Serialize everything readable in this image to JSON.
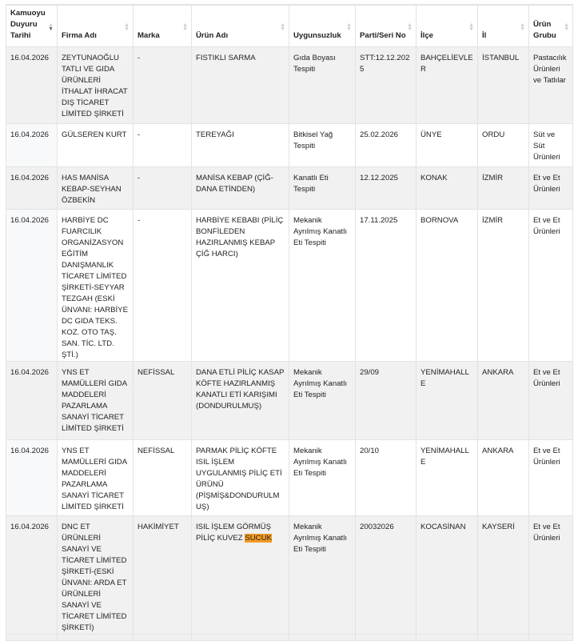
{
  "columns": [
    "Kamuoyu Duyuru Tarihi",
    "Firma Adı",
    "Marka",
    "Ürün Adı",
    "Uygunsuzluk",
    "Parti/Seri No",
    "İlçe",
    "İl",
    "Ürün Grubu"
  ],
  "sorted_column": 0,
  "highlight_term": "SUCUK",
  "rows": [
    [
      "16.04.2026",
      "ZEYTUNAOĞLU TATLI VE GIDA ÜRÜNLERİ İTHALAT İHRACAT DIŞ TİCARET LİMİTED ŞİRKETİ",
      "-",
      "FISTIKLI SARMA",
      "Gıda Boyası Tespiti",
      "STT:12.12.2025",
      "BAHÇELİEVLER",
      "İSTANBUL",
      "Pastacılık Ürünleri ve Tatlılar"
    ],
    [
      "16.04.2026",
      "GÜLSEREN KURT",
      "-",
      "TEREYAĞI",
      "Bitkisel Yağ Tespiti",
      "25.02.2026",
      "ÜNYE",
      "ORDU",
      "Süt ve Süt Ürünleri"
    ],
    [
      "16.04.2026",
      "HAS MANİSA KEBAP-SEYHAN ÖZBEKİN",
      "-",
      "MANİSA KEBAP (ÇİĞ-DANA ETİNDEN)",
      "Kanatlı Eti Tespiti",
      "12.12.2025",
      "KONAK",
      "İZMİR",
      "Et ve Et Ürünleri"
    ],
    [
      "16.04.2026",
      "HARBİYE DC FUARCILIK ORGANİZASYON EĞİTİM DANIŞMANLIK TİCARET LİMİTED ŞİRKETİ-SEYYAR TEZGAH (ESKİ ÜNVANI: HARBİYE DC GIDA TEKS. KOZ. OTO TAŞ. SAN. TİC. LTD. ŞTİ.)",
      "-",
      "HARBİYE KEBABI (PİLİÇ BONFİLEDEN HAZIRLANMIŞ KEBAP ÇİĞ HARCI)",
      "Mekanik Ayrılmış Kanatlı Eti Tespiti",
      "17.11.2025",
      "BORNOVA",
      "İZMİR",
      "Et ve Et Ürünleri"
    ],
    [
      "16.04.2026",
      "YNS ET MAMÜLLERİ GIDA MADDELERİ PAZARLAMA SANAYİ TİCARET LİMİTED ŞİRKETİ",
      "NEFİSSAL",
      "DANA ETLİ PİLİÇ KASAP KÖFTE HAZIRLANMIŞ KANATLI ETİ KARIŞIMI (DONDURULMUŞ)",
      "Mekanik Ayrılmış Kanatlı Eti Tespiti",
      "29/09",
      "YENİMAHALLE",
      "ANKARA",
      "Et ve Et Ürünleri"
    ],
    [
      "16.04.2026",
      "YNS ET MAMÜLLERİ GIDA MADDELERİ PAZARLAMA SANAYİ TİCARET LİMİTED ŞİRKETİ",
      "NEFİSSAL",
      "PARMAK PİLİÇ KÖFTE ISIL İŞLEM UYGULANMIŞ PİLİÇ ETİ ÜRÜNÜ (PİŞMİŞ&DONDURULMUŞ)",
      "Mekanik Ayrılmış Kanatlı Eti Tespiti",
      "20/10",
      "YENİMAHALLE",
      "ANKARA",
      "Et ve Et Ürünleri"
    ],
    [
      "16.04.2026",
      "DNC ET ÜRÜNLERİ SANAYİ VE TİCARET LİMİTED ŞİRKETİ-(ESKİ ÜNVANI: ARDA ET ÜRÜNLERİ SANAYİ VE TİCARET LİMİTED ŞİRKETİ)",
      "HAKİMİYET",
      "ISIL İŞLEM GÖRMÜŞ PİLİÇ KUVEZ SUCUK",
      "Mekanik Ayrılmış Kanatlı Eti Tespiti",
      "20032026",
      "KOCASİNAN",
      "KAYSERİ",
      "Et ve Et Ürünleri"
    ]
  ]
}
